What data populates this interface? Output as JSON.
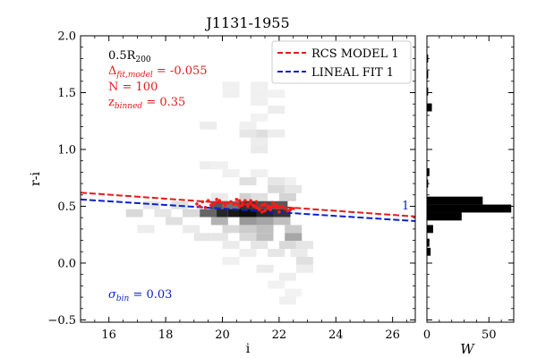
{
  "chart_data": [
    {
      "type": "heatmap+line",
      "title": "J1131-1955",
      "xlabel": "i",
      "ylabel": "r-i",
      "xlim": [
        15,
        26.8
      ],
      "ylim": [
        -0.52,
        2.0
      ],
      "xticks": [
        16,
        18,
        20,
        22,
        24,
        26
      ],
      "yticks": [
        -0.5,
        0.0,
        0.5,
        1.0,
        1.5,
        2.0
      ],
      "ytick_labels": [
        "−0.5",
        "0.0",
        "0.5",
        "1.0",
        "1.5",
        "2.0"
      ],
      "annotations": {
        "radius_prefix": "0.5R",
        "radius_sub": "200",
        "delta_label": "Δ",
        "delta_sub": "fit,model",
        "delta_value": " = -0.055",
        "n_text": "N = 100",
        "z_label": "z",
        "z_sub": "binned",
        "z_value": " = 0.35",
        "sigma_label": "σ",
        "sigma_sub": "bin",
        "sigma_value": " = 0.03",
        "side_label": "1"
      },
      "legend": {
        "placement": "top-right",
        "entries": [
          {
            "label": "RCS MODEL 1",
            "color": "#e31a1c",
            "style": "dashed"
          },
          {
            "label": "LINEAL FIT 1",
            "color": "#0a1fcc",
            "style": "dashed"
          }
        ]
      },
      "lines": [
        {
          "name": "RCS MODEL 1",
          "x": [
            15,
            26.8
          ],
          "y": [
            0.62,
            0.41
          ],
          "color": "#e31a1c"
        },
        {
          "name": "LINEAL FIT 1",
          "x": [
            15,
            26.8
          ],
          "y": [
            0.56,
            0.37
          ],
          "color": "#0a1fcc"
        }
      ],
      "red_points": {
        "color": "#ff1a1a",
        "x": [
          19.1,
          19.3,
          19.5,
          19.7,
          19.9,
          20.1,
          20.3,
          20.5,
          20.7,
          20.9,
          21.1,
          21.3,
          21.5,
          21.7,
          21.9,
          22.1,
          22.3,
          22.5,
          19.2,
          19.6,
          20.0,
          20.4,
          20.8,
          21.2,
          21.6,
          22.0,
          22.4,
          19.4,
          19.8,
          20.2,
          20.6,
          21.0,
          21.4,
          21.8,
          22.2,
          20.9,
          21.1,
          21.3,
          21.5,
          21.7,
          21.9,
          22.0,
          20.5,
          20.6,
          20.7,
          21.0,
          21.2,
          21.4,
          21.6,
          21.8
        ],
        "y": [
          0.52,
          0.54,
          0.55,
          0.52,
          0.55,
          0.51,
          0.54,
          0.56,
          0.53,
          0.5,
          0.51,
          0.48,
          0.52,
          0.47,
          0.49,
          0.5,
          0.46,
          0.48,
          0.5,
          0.51,
          0.53,
          0.52,
          0.55,
          0.54,
          0.5,
          0.49,
          0.47,
          0.49,
          0.56,
          0.53,
          0.5,
          0.55,
          0.45,
          0.53,
          0.48,
          0.52,
          0.5,
          0.47,
          0.46,
          0.49,
          0.51,
          0.45,
          0.52,
          0.55,
          0.51,
          0.53,
          0.49,
          0.51,
          0.48,
          0.5
        ]
      },
      "density_bins": {
        "x_bin_width": 0.6,
        "y_bin_height": 0.07,
        "cells": [
          [
            20.3,
            1.56,
            0.06
          ],
          [
            21.3,
            1.56,
            0.06
          ],
          [
            20.3,
            1.49,
            0.06
          ],
          [
            21.3,
            1.49,
            0.06
          ],
          [
            21.9,
            1.49,
            0.05
          ],
          [
            21.3,
            1.42,
            0.06
          ],
          [
            21.9,
            1.35,
            0.07
          ],
          [
            21.3,
            1.28,
            0.05
          ],
          [
            19.5,
            1.21,
            0.07
          ],
          [
            20.9,
            1.21,
            0.06
          ],
          [
            21.3,
            1.14,
            0.13
          ],
          [
            20.9,
            1.14,
            0.1
          ],
          [
            21.9,
            1.14,
            0.07
          ],
          [
            21.3,
            1.07,
            0.07
          ],
          [
            21.3,
            1.0,
            0.08
          ],
          [
            20.3,
            0.79,
            0.06
          ],
          [
            19.5,
            0.86,
            0.07
          ],
          [
            19.9,
            0.86,
            0.06
          ],
          [
            21.3,
            0.79,
            0.06
          ],
          [
            22.3,
            0.72,
            0.06
          ],
          [
            21.9,
            0.72,
            0.1
          ],
          [
            20.9,
            0.72,
            0.12
          ],
          [
            21.9,
            0.65,
            0.15
          ],
          [
            22.5,
            0.65,
            0.1
          ],
          [
            20.9,
            0.58,
            0.18
          ],
          [
            21.3,
            0.58,
            0.12
          ],
          [
            19.9,
            0.58,
            0.08
          ],
          [
            22.3,
            0.58,
            0.17
          ],
          [
            19.9,
            0.51,
            0.65
          ],
          [
            20.9,
            0.51,
            0.8
          ],
          [
            21.5,
            0.51,
            0.7
          ],
          [
            22.0,
            0.51,
            0.65
          ],
          [
            20.3,
            0.51,
            0.55
          ],
          [
            19.9,
            0.44,
            0.85
          ],
          [
            20.5,
            0.44,
            0.9
          ],
          [
            20.9,
            0.44,
            0.95
          ],
          [
            21.5,
            0.44,
            0.85
          ],
          [
            22.1,
            0.44,
            0.8
          ],
          [
            19.5,
            0.44,
            0.6
          ],
          [
            18.9,
            0.44,
            0.15
          ],
          [
            19.9,
            0.37,
            0.3
          ],
          [
            20.9,
            0.37,
            0.4
          ],
          [
            21.5,
            0.37,
            0.35
          ],
          [
            22.1,
            0.37,
            0.25
          ],
          [
            17.9,
            0.44,
            0.1
          ],
          [
            18.3,
            0.37,
            0.12
          ],
          [
            20.3,
            0.3,
            0.15
          ],
          [
            20.9,
            0.3,
            0.2
          ],
          [
            21.5,
            0.3,
            0.25
          ],
          [
            22.5,
            0.3,
            0.2
          ],
          [
            19.9,
            0.23,
            0.1
          ],
          [
            20.9,
            0.23,
            0.15
          ],
          [
            21.5,
            0.23,
            0.25
          ],
          [
            22.5,
            0.23,
            0.35
          ],
          [
            19.3,
            0.23,
            0.1
          ],
          [
            20.3,
            0.16,
            0.08
          ],
          [
            21.3,
            0.16,
            0.1
          ],
          [
            22.3,
            0.16,
            0.15
          ],
          [
            22.9,
            0.16,
            0.1
          ],
          [
            20.9,
            0.09,
            0.07
          ],
          [
            21.9,
            0.09,
            0.1
          ],
          [
            22.7,
            0.09,
            0.08
          ],
          [
            20.3,
            0.02,
            0.06
          ],
          [
            22.9,
            0.02,
            0.12
          ],
          [
            21.5,
            -0.05,
            0.08
          ],
          [
            22.9,
            -0.05,
            0.07
          ],
          [
            22.3,
            -0.12,
            0.07
          ],
          [
            21.9,
            -0.19,
            0.05
          ],
          [
            22.5,
            -0.26,
            0.05
          ],
          [
            22.3,
            -0.33,
            0.06
          ],
          [
            17.5,
            0.51,
            0.1
          ],
          [
            18.5,
            0.51,
            0.12
          ],
          [
            17.3,
            0.3,
            0.07
          ],
          [
            16.9,
            0.44,
            0.15
          ],
          [
            18.9,
            0.3,
            0.08
          ]
        ]
      }
    },
    {
      "type": "bar",
      "orientation": "horizontal",
      "xlabel": "W",
      "xlim": [
        0,
        70
      ],
      "xticks": [
        0,
        50
      ],
      "bins": [
        {
          "y": 1.8,
          "w": 1
        },
        {
          "y": 1.66,
          "w": 1
        },
        {
          "y": 1.51,
          "w": 1
        },
        {
          "y": 1.37,
          "w": 4
        },
        {
          "y": 0.8,
          "w": 2
        },
        {
          "y": 0.7,
          "w": 1
        },
        {
          "y": 0.55,
          "w": 45
        },
        {
          "y": 0.48,
          "w": 68
        },
        {
          "y": 0.41,
          "w": 28
        },
        {
          "y": 0.3,
          "w": 5
        },
        {
          "y": 0.18,
          "w": 2
        },
        {
          "y": 0.1,
          "w": 3
        }
      ],
      "color": "#000000"
    }
  ]
}
